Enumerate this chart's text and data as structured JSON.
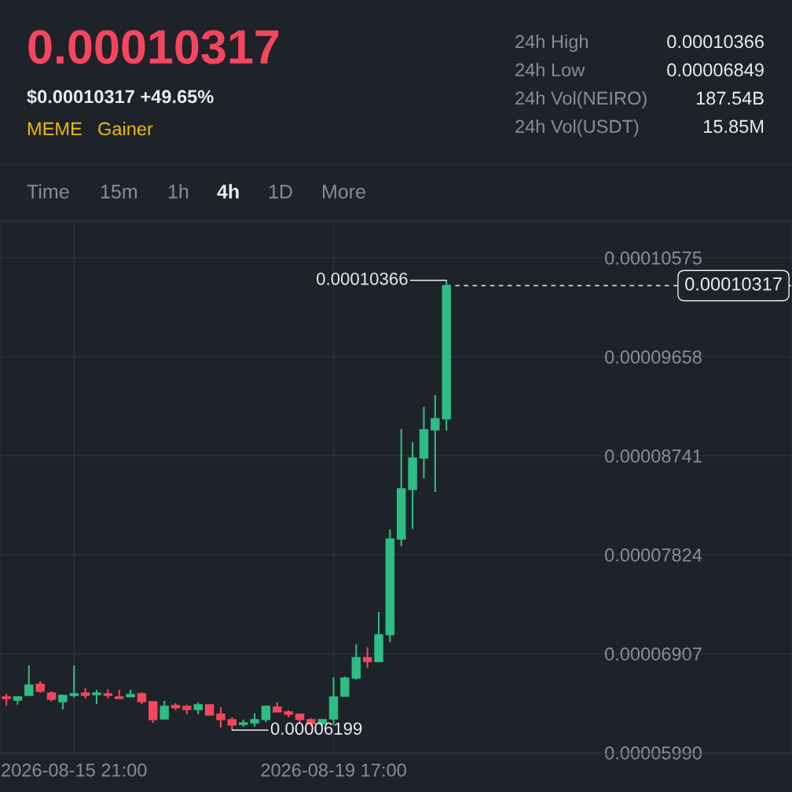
{
  "chart_data": {
    "type": "candlestick",
    "title": "0.00010317",
    "subtitle": "$0.00010317 +49.65%",
    "x": [
      "2026-08-14T21:00",
      "2026-08-15T01:00",
      "2026-08-15T05:00",
      "2026-08-15T09:00",
      "2026-08-15T13:00",
      "2026-08-15T17:00",
      "2026-08-15T21:00",
      "2026-08-16T01:00",
      "2026-08-16T05:00",
      "2026-08-16T09:00",
      "2026-08-16T13:00",
      "2026-08-16T17:00",
      "2026-08-16T21:00",
      "2026-08-17T01:00",
      "2026-08-17T05:00",
      "2026-08-17T09:00",
      "2026-08-17T13:00",
      "2026-08-17T17:00",
      "2026-08-17T21:00",
      "2026-08-18T01:00",
      "2026-08-18T05:00",
      "2026-08-18T09:00",
      "2026-08-18T13:00",
      "2026-08-18T17:00",
      "2026-08-18T21:00",
      "2026-08-19T01:00",
      "2026-08-19T05:00",
      "2026-08-19T09:00",
      "2026-08-19T13:00",
      "2026-08-19T17:00",
      "2026-08-19T21:00",
      "2026-08-20T01:00",
      "2026-08-20T05:00",
      "2026-08-20T09:00",
      "2026-08-20T13:00",
      "2026-08-20T17:00",
      "2026-08-20T21:00",
      "2026-08-21T01:00",
      "2026-08-21T05:00",
      "2026-08-21T09:00"
    ],
    "ohlc": [
      [
        6.507e-05,
        6.536e-05,
        6.427e-05,
        6.492e-05
      ],
      [
        6.477e-05,
        6.514e-05,
        6.434e-05,
        6.507e-05
      ],
      [
        6.521e-05,
        6.798e-05,
        6.521e-05,
        6.616e-05
      ],
      [
        6.623e-05,
        6.652e-05,
        6.543e-05,
        6.558e-05
      ],
      [
        6.543e-05,
        6.558e-05,
        6.463e-05,
        6.485e-05
      ],
      [
        6.463e-05,
        6.528e-05,
        6.39e-05,
        6.521e-05
      ],
      [
        6.521e-05,
        6.798e-05,
        6.499e-05,
        6.536e-05
      ],
      [
        6.543e-05,
        6.587e-05,
        6.492e-05,
        6.521e-05
      ],
      [
        6.528e-05,
        6.572e-05,
        6.441e-05,
        6.543e-05
      ],
      [
        6.536e-05,
        6.579e-05,
        6.492e-05,
        6.521e-05
      ],
      [
        6.507e-05,
        6.572e-05,
        6.492e-05,
        6.492e-05
      ],
      [
        6.507e-05,
        6.572e-05,
        6.507e-05,
        6.528e-05
      ],
      [
        6.536e-05,
        6.55e-05,
        6.441e-05,
        6.463e-05
      ],
      [
        6.463e-05,
        6.463e-05,
        6.266e-05,
        6.296e-05
      ],
      [
        6.303e-05,
        6.47e-05,
        6.303e-05,
        6.419e-05
      ],
      [
        6.427e-05,
        6.448e-05,
        6.383e-05,
        6.405e-05
      ],
      [
        6.419e-05,
        6.434e-05,
        6.346e-05,
        6.39e-05
      ],
      [
        6.39e-05,
        6.456e-05,
        6.346e-05,
        6.434e-05
      ],
      [
        6.434e-05,
        6.434e-05,
        6.339e-05,
        6.339e-05
      ],
      [
        6.346e-05,
        6.412e-05,
        6.223e-05,
        6.296e-05
      ],
      [
        6.296e-05,
        6.317e-05,
        6.199e-05,
        6.245e-05
      ],
      [
        6.252e-05,
        6.296e-05,
        6.23e-05,
        6.266e-05
      ],
      [
        6.266e-05,
        6.354e-05,
        6.23e-05,
        6.296e-05
      ],
      [
        6.296e-05,
        6.427e-05,
        6.274e-05,
        6.419e-05
      ],
      [
        6.412e-05,
        6.456e-05,
        6.368e-05,
        6.368e-05
      ],
      [
        6.368e-05,
        6.383e-05,
        6.317e-05,
        6.346e-05
      ],
      [
        6.346e-05,
        6.346e-05,
        6.259e-05,
        6.296e-05
      ],
      [
        6.296e-05,
        6.31e-05,
        6.237e-05,
        6.259e-05
      ],
      [
        6.259e-05,
        6.303e-05,
        6.237e-05,
        6.296e-05
      ],
      [
        6.303e-05,
        6.689e-05,
        6.245e-05,
        6.507e-05
      ],
      [
        6.514e-05,
        6.696e-05,
        6.514e-05,
        6.681e-05
      ],
      [
        6.681e-05,
        6.994e-05,
        6.667e-05,
        6.87e-05
      ],
      [
        6.87e-05,
        6.965e-05,
        6.776e-05,
        6.834e-05
      ],
      [
        6.834e-05,
        7.293e-05,
        6.834e-05,
        7.082e-05
      ],
      [
        7.082e-05,
        8.057e-05,
        7.016e-05,
        7.969e-05
      ],
      [
        7.969e-05,
        8.988e-05,
        7.904e-05,
        8.435e-05
      ],
      [
        8.428e-05,
        8.865e-05,
        8.064e-05,
        8.719e-05
      ],
      [
        8.719e-05,
        9.192e-05,
        8.53e-05,
        8.981e-05
      ],
      [
        8.981e-05,
        9.301e-05,
        8.406e-05,
        9.083e-05
      ],
      [
        9.083e-05,
        0.00010366,
        8.974e-05,
        0.00010317
      ]
    ],
    "colors": [
      "#f6465d",
      "#2ebd85",
      "#2ebd85",
      "#f6465d",
      "#f6465d",
      "#2ebd85",
      "#2ebd85",
      "#f6465d",
      "#2ebd85",
      "#f6465d",
      "#f6465d",
      "#2ebd85",
      "#f6465d",
      "#f6465d",
      "#2ebd85",
      "#f6465d",
      "#f6465d",
      "#2ebd85",
      "#f6465d",
      "#f6465d",
      "#f6465d",
      "#2ebd85",
      "#2ebd85",
      "#2ebd85",
      "#f6465d",
      "#f6465d",
      "#f6465d",
      "#f6465d",
      "#2ebd85",
      "#2ebd85",
      "#2ebd85",
      "#2ebd85",
      "#f6465d",
      "#2ebd85",
      "#2ebd85",
      "#2ebd85",
      "#2ebd85",
      "#2ebd85",
      "#2ebd85",
      "#2ebd85"
    ],
    "xlim": [
      "2026-08-14T18:45",
      "2026-08-26T11:30"
    ],
    "xticks": [
      {
        "value": "2026-08-15T21:00",
        "label": "2026-08-15 21:00"
      },
      {
        "value": "2026-08-19T17:00",
        "label": "2026-08-19 17:00"
      }
    ],
    "ylim": [
      5.975e-05,
      0.0001091
    ],
    "yticks": [
      {
        "value": 5.99e-05,
        "label": "0.00005990"
      },
      {
        "value": 6.907e-05,
        "label": "0.00006907"
      },
      {
        "value": 7.824e-05,
        "label": "0.00007824"
      },
      {
        "value": 8.741e-05,
        "label": "0.00008741"
      },
      {
        "value": 9.658e-05,
        "label": "0.00009658"
      },
      {
        "value": 0.00010575,
        "label": "0.00010575"
      }
    ],
    "grid": true,
    "ref_lines": [
      {
        "axis": "y",
        "value": 0.00010317,
        "label": "0.00010317",
        "line_style": "dashed",
        "color": "#eaecef"
      }
    ],
    "annotations": [
      "MEME",
      "Gainer",
      "24h High",
      "0.00010366",
      "24h Low",
      "0.00006849",
      "24h Vol(NEIRO)",
      "187.54B",
      "24h Vol(USDT)",
      "15.85M",
      "Time",
      "15m",
      "1h",
      "4h",
      "1D",
      "More",
      {
        "text": "0.00010366",
        "x": "2026-08-21T09:00",
        "y": 0.00010366
      },
      {
        "text": "0.00006199",
        "x": "2026-08-18T05:00",
        "y": 6.199e-05
      }
    ]
  }
}
